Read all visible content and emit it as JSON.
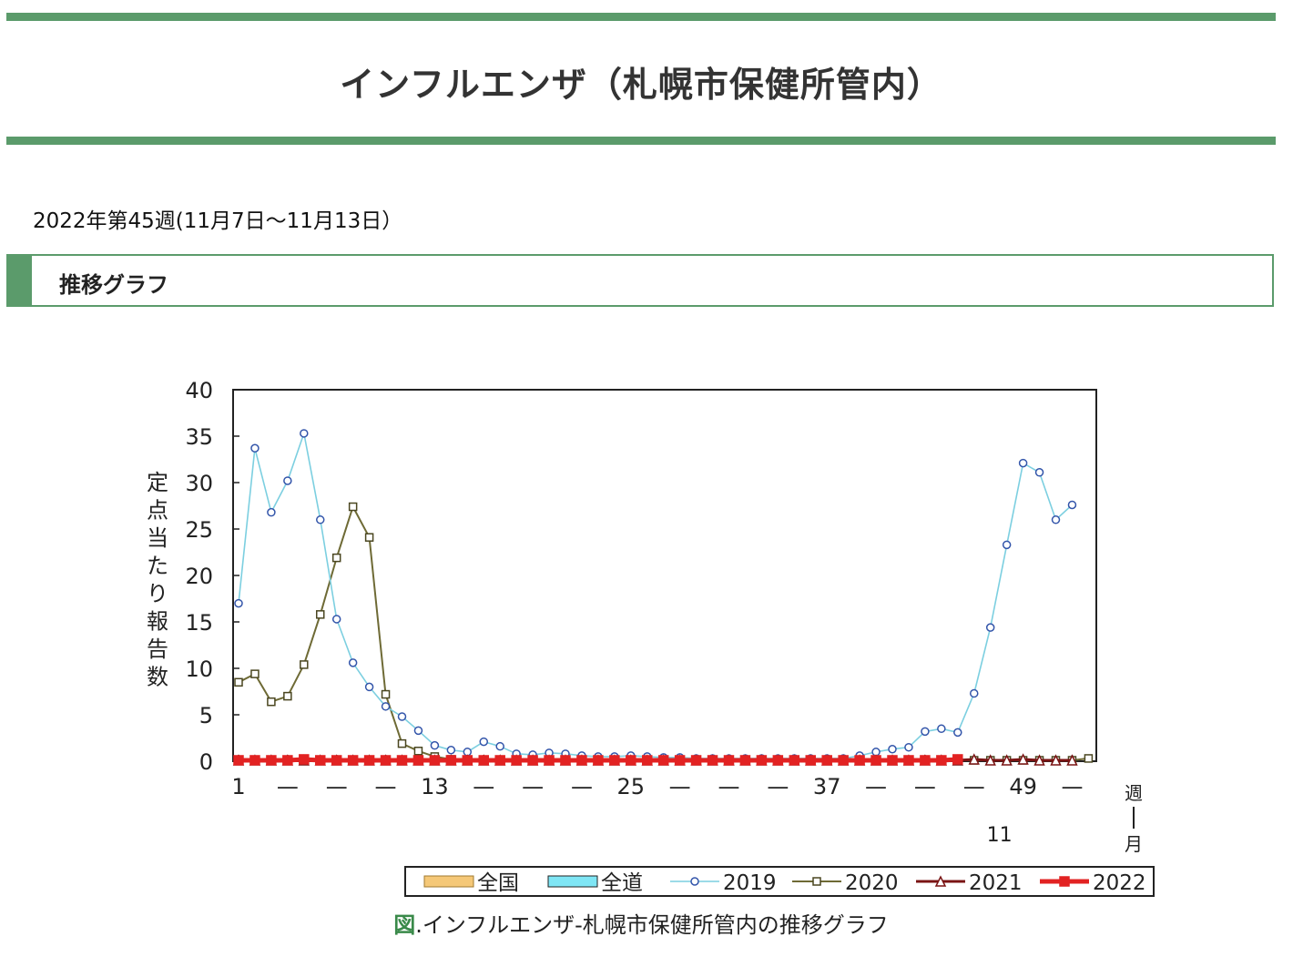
{
  "page": {
    "title": "インフルエンザ（札幌市保健所管内）",
    "week_info": "2022年第45週(11月7日～11月13日）",
    "section_heading": "推移グラフ",
    "caption_prefix": "図",
    "caption_text": ".インフルエンザ-札幌市保健所管内の推移グラフ"
  },
  "chart_data": {
    "type": "line",
    "title": "",
    "ylabel": "定点当たり報告数",
    "xlabel": "週",
    "xlabel2": "月",
    "ylim": [
      0,
      40
    ],
    "yticks": [
      0,
      5,
      10,
      15,
      20,
      25,
      30,
      35,
      40
    ],
    "xlim": [
      1,
      53
    ],
    "xtick_labels": [
      "1",
      "—",
      "—",
      "—",
      "13",
      "—",
      "—",
      "—",
      "25",
      "—",
      "—",
      "—",
      "37",
      "—",
      "—",
      "—",
      "49",
      "—"
    ],
    "month_marker": {
      "week": 49,
      "label": "11"
    },
    "grid": false,
    "legend": [
      "全国",
      "全道",
      "2019",
      "2020",
      "2021",
      "2022"
    ],
    "legend_placement": "bottom",
    "colors": {
      "nation": "#f5c878",
      "hokkaido": "#7fe6f5",
      "s2019": "#7ccfe0",
      "s2020": "#6e6a35",
      "s2021": "#7a1414",
      "s2022": "#e22222"
    },
    "series": [
      {
        "name": "2019",
        "marker": "circle",
        "x": [
          1,
          2,
          3,
          4,
          5,
          6,
          7,
          8,
          9,
          10,
          11,
          12,
          13,
          14,
          15,
          16,
          17,
          18,
          19,
          20,
          21,
          22,
          23,
          24,
          25,
          26,
          27,
          28,
          29,
          30,
          31,
          32,
          33,
          34,
          35,
          36,
          37,
          38,
          39,
          40,
          41,
          42,
          43,
          44,
          45,
          46,
          47,
          48,
          49,
          50,
          51,
          52
        ],
        "values": [
          17.0,
          33.7,
          26.8,
          30.2,
          35.3,
          26.0,
          15.3,
          10.6,
          8.0,
          5.9,
          4.8,
          3.3,
          1.7,
          1.2,
          1.0,
          2.1,
          1.6,
          0.8,
          0.7,
          0.9,
          0.8,
          0.6,
          0.5,
          0.5,
          0.6,
          0.5,
          0.4,
          0.4,
          0.3,
          0.3,
          0.3,
          0.3,
          0.3,
          0.3,
          0.3,
          0.3,
          0.3,
          0.3,
          0.6,
          1.0,
          1.3,
          1.5,
          3.2,
          3.5,
          3.1,
          7.3,
          14.4,
          23.3,
          32.1,
          31.1,
          26.0,
          27.6
        ]
      },
      {
        "name": "2020",
        "marker": "square",
        "x": [
          1,
          2,
          3,
          4,
          5,
          6,
          7,
          8,
          9,
          10,
          11,
          12,
          13,
          14,
          15,
          16,
          17,
          18,
          19,
          20,
          21,
          22,
          23,
          24,
          25,
          26,
          27,
          28,
          29,
          30,
          31,
          32,
          33,
          34,
          35,
          36,
          37,
          38,
          39,
          40,
          41,
          42,
          43,
          44,
          45,
          46,
          47,
          48,
          49,
          50,
          51,
          52,
          53
        ],
        "values": [
          8.5,
          9.4,
          6.4,
          7.0,
          10.4,
          15.8,
          21.9,
          27.4,
          24.1,
          7.2,
          1.9,
          1.1,
          0.5,
          0.2,
          0.1,
          0.1,
          0.1,
          0.1,
          0.1,
          0.1,
          0.1,
          0.1,
          0.1,
          0.1,
          0.1,
          0.1,
          0.1,
          0.1,
          0.1,
          0.1,
          0.1,
          0.1,
          0.1,
          0.1,
          0.1,
          0.1,
          0.1,
          0.1,
          0.1,
          0.1,
          0.1,
          0.1,
          0.1,
          0.1,
          0.1,
          0.1,
          0.1,
          0.1,
          0.1,
          0.1,
          0.1,
          0.1,
          0.3
        ]
      },
      {
        "name": "2021",
        "marker": "triangle",
        "x": [
          1,
          2,
          3,
          4,
          5,
          6,
          7,
          8,
          9,
          10,
          11,
          12,
          13,
          14,
          15,
          16,
          17,
          18,
          19,
          20,
          21,
          22,
          23,
          24,
          25,
          26,
          27,
          28,
          29,
          30,
          31,
          32,
          33,
          34,
          35,
          36,
          37,
          38,
          39,
          40,
          41,
          42,
          43,
          44,
          45,
          46,
          47,
          48,
          49,
          50,
          51,
          52
        ],
        "values": [
          0.1,
          0.1,
          0.1,
          0.1,
          0.1,
          0.1,
          0.1,
          0.1,
          0.1,
          0.1,
          0.1,
          0.1,
          0.1,
          0.1,
          0.1,
          0.1,
          0.1,
          0.1,
          0.1,
          0.1,
          0.1,
          0.1,
          0.1,
          0.1,
          0.1,
          0.1,
          0.1,
          0.1,
          0.1,
          0.1,
          0.1,
          0.1,
          0.1,
          0.1,
          0.1,
          0.1,
          0.1,
          0.1,
          0.1,
          0.1,
          0.1,
          0.1,
          0.1,
          0.1,
          0.1,
          0.2,
          0.1,
          0.1,
          0.2,
          0.1,
          0.1,
          0.1
        ]
      },
      {
        "name": "2022",
        "marker": "square",
        "x": [
          1,
          2,
          3,
          4,
          5,
          6,
          7,
          8,
          9,
          10,
          11,
          12,
          13,
          14,
          15,
          16,
          17,
          18,
          19,
          20,
          21,
          22,
          23,
          24,
          25,
          26,
          27,
          28,
          29,
          30,
          31,
          32,
          33,
          34,
          35,
          36,
          37,
          38,
          39,
          40,
          41,
          42,
          43,
          44,
          45
        ],
        "values": [
          0.1,
          0.1,
          0.1,
          0.1,
          0.2,
          0.1,
          0.1,
          0.1,
          0.1,
          0.1,
          0.1,
          0.1,
          0.1,
          0.1,
          0.1,
          0.1,
          0.1,
          0.1,
          0.1,
          0.1,
          0.1,
          0.1,
          0.1,
          0.1,
          0.1,
          0.1,
          0.1,
          0.1,
          0.1,
          0.1,
          0.1,
          0.1,
          0.1,
          0.1,
          0.1,
          0.1,
          0.1,
          0.1,
          0.1,
          0.1,
          0.1,
          0.1,
          0.1,
          0.1,
          0.2
        ]
      }
    ]
  }
}
